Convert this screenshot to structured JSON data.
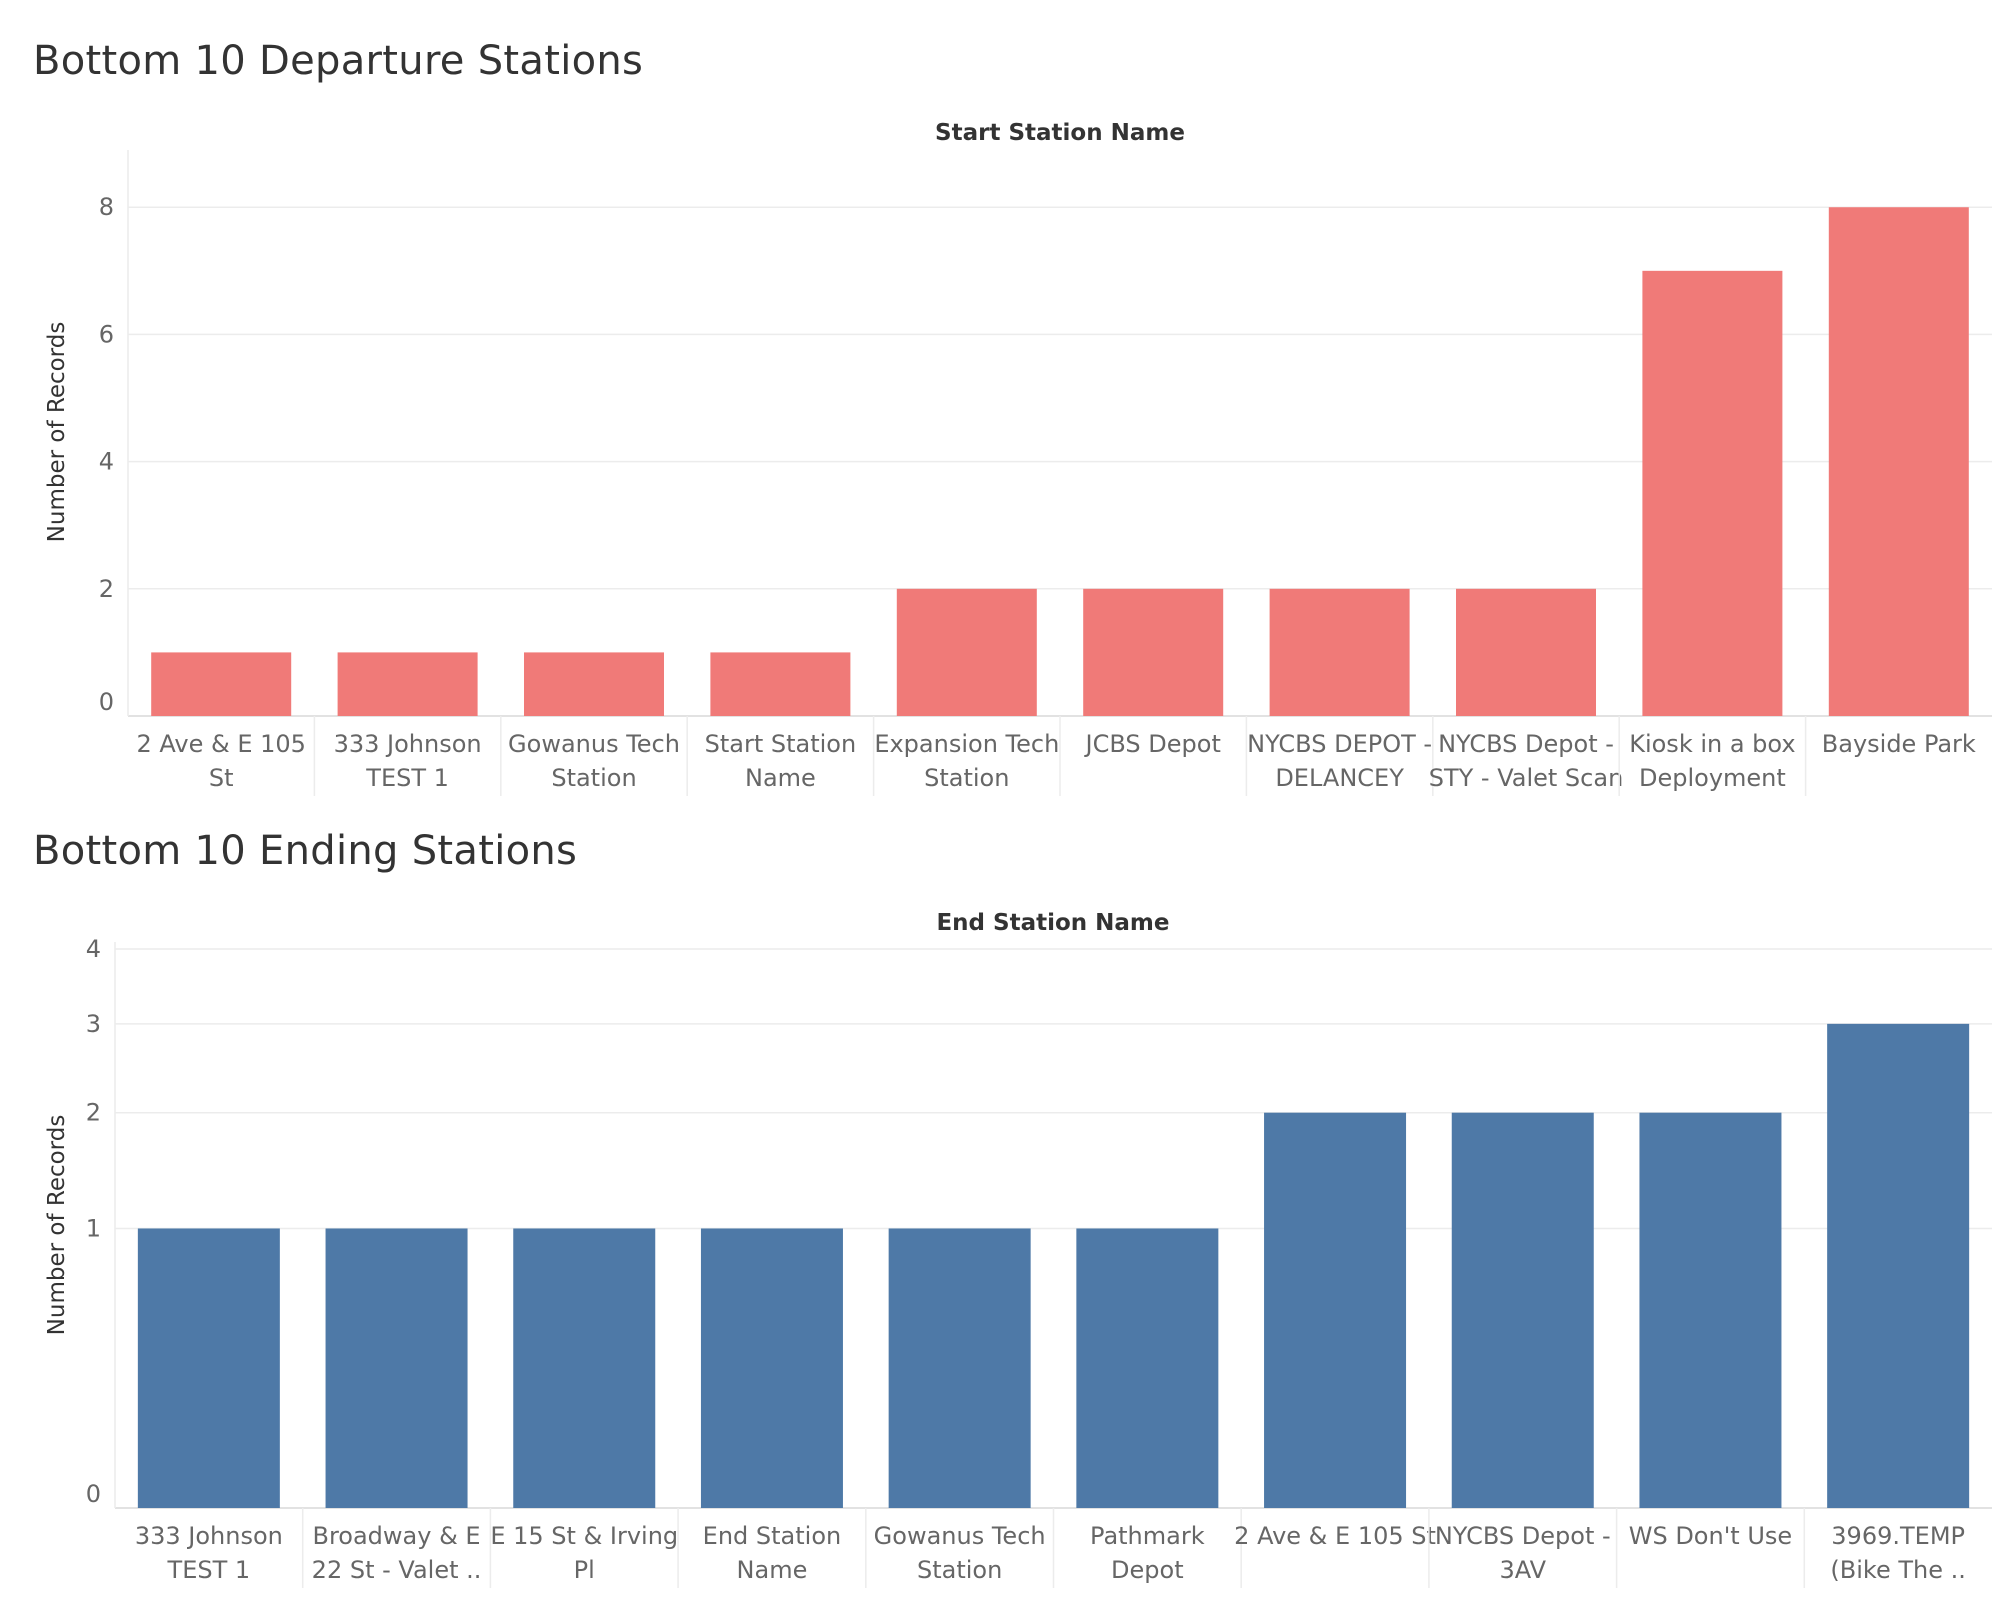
{
  "charts": [
    {
      "title": "Bottom 10 Departure Stations",
      "header": "Start Station Name",
      "bar_color": "#f07a78"
    },
    {
      "title": "Bottom 10 Ending Stations",
      "header": "End Station Name",
      "bar_color": "#4e79a7"
    }
  ],
  "chart_data": [
    {
      "type": "bar",
      "title": "Bottom 10 Departure Stations",
      "xlabel": "Start Station Name",
      "ylabel": "Number of Records",
      "categories": [
        [
          "2 Ave & E 105",
          "St"
        ],
        [
          "333 Johnson",
          "TEST 1"
        ],
        [
          "Gowanus Tech",
          "Station"
        ],
        [
          "Start Station",
          "Name"
        ],
        [
          "Expansion Tech",
          "Station"
        ],
        [
          "JCBS Depot"
        ],
        [
          "NYCBS DEPOT -",
          "DELANCEY"
        ],
        [
          "NYCBS Depot -",
          "STY - Valet Scan"
        ],
        [
          "Kiosk in a box",
          "Deployment"
        ],
        [
          "Bayside Park"
        ]
      ],
      "values": [
        1,
        1,
        1,
        1,
        2,
        2,
        2,
        2,
        7,
        8
      ],
      "yticks": [
        0,
        2,
        4,
        6,
        8
      ],
      "ylim": [
        0,
        8.9
      ],
      "grid": true,
      "color": "#f07a78"
    },
    {
      "type": "bar",
      "title": "Bottom 10 Ending Stations",
      "xlabel": "End Station Name",
      "ylabel": "Number of Records",
      "categories": [
        [
          "333 Johnson",
          "TEST 1"
        ],
        [
          "Broadway & E",
          "22 St - Valet .."
        ],
        [
          "E 15 St & Irving",
          "Pl"
        ],
        [
          "End Station",
          "Name"
        ],
        [
          "Gowanus Tech",
          "Station"
        ],
        [
          "Pathmark",
          "Depot"
        ],
        [
          "2 Ave & E 105 St"
        ],
        [
          "NYCBS Depot -",
          "3AV"
        ],
        [
          "WS Don't Use"
        ],
        [
          "3969.TEMP",
          "(Bike The .."
        ]
      ],
      "values": [
        1,
        1,
        1,
        1,
        1,
        1,
        2,
        2,
        2,
        3
      ],
      "yticks": [
        0,
        1,
        2,
        3,
        4
      ],
      "ylim": [
        0,
        4.1
      ],
      "scale": "power-0.5",
      "grid": true,
      "color": "#4e79a7"
    }
  ]
}
